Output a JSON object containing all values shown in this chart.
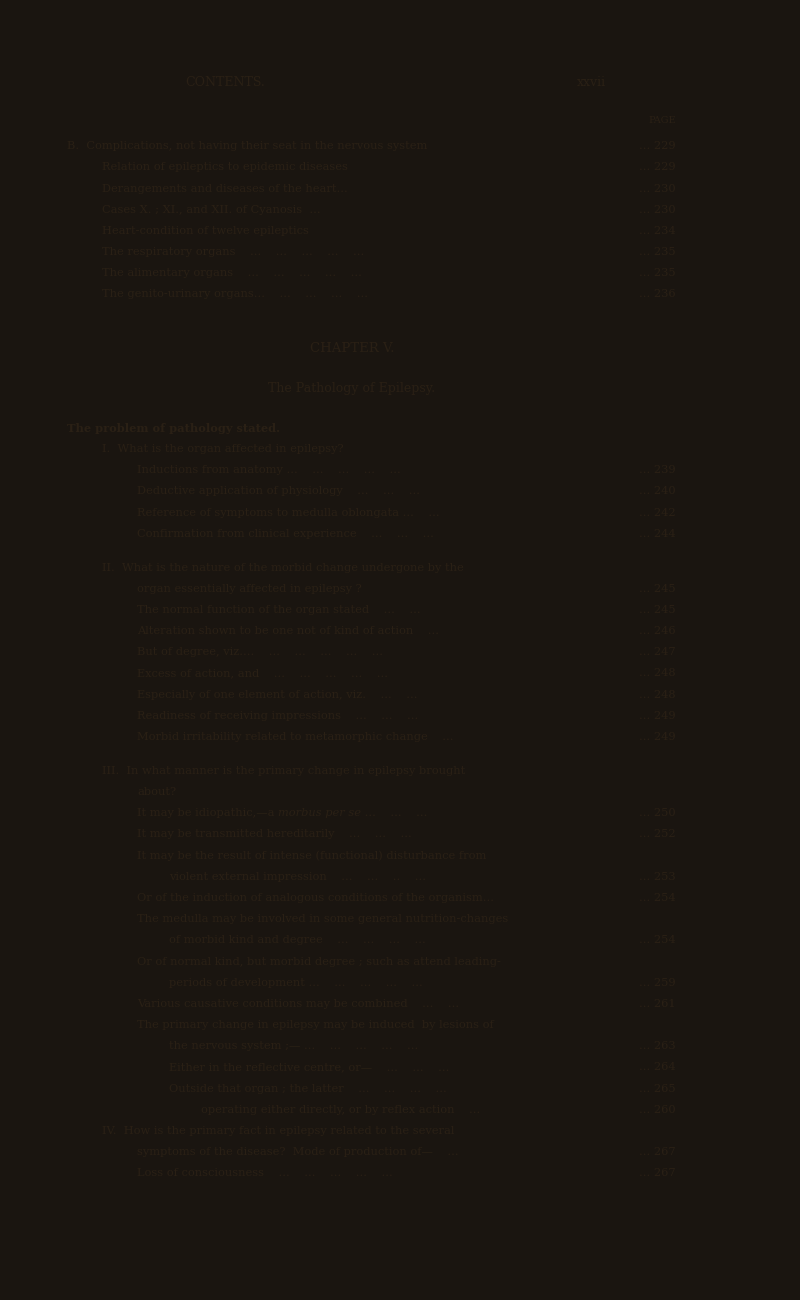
{
  "bg_color": "#1a1510",
  "page_color": "#ede8d0",
  "text_color": "#2a2015",
  "header_left": "CONTENTS.",
  "header_right": "xxvii",
  "page_label": "PAGE",
  "top_bar_height": 0.028,
  "lines": [
    {
      "indent": 0,
      "text": "B.  Complications, not having their seat in the nervous system",
      "page": "229",
      "style": "normal"
    },
    {
      "indent": 1,
      "text": "Relation of epileptics to epidemic diseases",
      "dots_mid": "   ...    ...    ...",
      "page": "229",
      "style": "normal"
    },
    {
      "indent": 1,
      "text": "Derangements and diseases of the heart...",
      "dots_mid": "   ...    ...    ...",
      "page": "230",
      "style": "normal"
    },
    {
      "indent": 1,
      "text": "Cases X. ; XI., and XII. of Cyanosis  ...",
      "dots_mid": "   ...    ...    ...",
      "page": "230",
      "style": "normal"
    },
    {
      "indent": 1,
      "text": "Heart-condition of twelve epileptics",
      "dots_mid": "   ...    ...    ...   ...",
      "page": "234",
      "style": "normal"
    },
    {
      "indent": 1,
      "text": "The respiratory organs    ...    ...    ...    ...    ...",
      "dots_mid": "",
      "page": "235",
      "style": "normal"
    },
    {
      "indent": 1,
      "text": "The alimentary organs    ...    ...    ...    ...    ...",
      "dots_mid": "",
      "page": "235",
      "style": "normal"
    },
    {
      "indent": 1,
      "text": "The genito-urinary organs...    ...    ...    ...    ...",
      "dots_mid": "",
      "page": "236",
      "style": "normal"
    },
    {
      "indent": -1,
      "text": "",
      "page": "",
      "style": "spacer"
    },
    {
      "indent": -1,
      "text": "CHAPTER V.",
      "page": "",
      "style": "chapter_heading"
    },
    {
      "indent": -1,
      "text": "",
      "page": "",
      "style": "spacer_small"
    },
    {
      "indent": -1,
      "text": "The Pathology of Epilepsy.",
      "page": "",
      "style": "section_heading"
    },
    {
      "indent": -1,
      "text": "",
      "page": "",
      "style": "spacer_small"
    },
    {
      "indent": 0,
      "text": "The problem of pathology stated.",
      "page": "",
      "style": "normal_bold"
    },
    {
      "indent": 1,
      "text": "I.  What is the organ affected in epilepsy?",
      "page": "",
      "style": "roman_heading"
    },
    {
      "indent": 2,
      "text": "Inductions from anatomy ...    ...    ...    ...    ...",
      "page": "239",
      "style": "normal"
    },
    {
      "indent": 2,
      "text": "Deductive application of physiology    ...    ...    ...",
      "page": "240",
      "style": "normal"
    },
    {
      "indent": 2,
      "text": "Reference of symptoms to medulla oblongata ...    ...",
      "page": "242",
      "style": "normal"
    },
    {
      "indent": 2,
      "text": "Confirmation from clinical experience    ...    ...    ...",
      "page": "244",
      "style": "normal"
    },
    {
      "indent": -1,
      "text": "",
      "page": "",
      "style": "spacer_small"
    },
    {
      "indent": 1,
      "text": "II.  What is the nature of the morbid change undergone by the",
      "page": "",
      "style": "roman_heading"
    },
    {
      "indent": 2,
      "text": "organ essentially affected in epilepsy ?",
      "dots_mid": "   ...    ...    ...",
      "page": "245",
      "style": "normal"
    },
    {
      "indent": 2,
      "text": "The normal function of the organ stated    ...    ...",
      "dots_mid": "   ...",
      "page": "245",
      "style": "normal"
    },
    {
      "indent": 2,
      "text": "Alteration shown to be one not of kind of action    ...",
      "page": "246",
      "style": "normal"
    },
    {
      "indent": 2,
      "text": "But of degree, viz....    ...    ...    ...    ...    ...",
      "page": "247",
      "style": "normal"
    },
    {
      "indent": 2,
      "text": "Excess of action, and    ...    ...    ...    ...    ...",
      "page": "248",
      "style": "normal"
    },
    {
      "indent": 2,
      "text": "Especially of one element of action, viz.    ...    ...",
      "page": "248",
      "style": "normal"
    },
    {
      "indent": 2,
      "text": "Readiness of receiving impressions    ...    ...    ...",
      "page": "249",
      "style": "normal"
    },
    {
      "indent": 2,
      "text": "Morbid irritability related to metamorphic change    ...",
      "page": "249",
      "style": "normal"
    },
    {
      "indent": -1,
      "text": "",
      "page": "",
      "style": "spacer_small"
    },
    {
      "indent": 1,
      "text": "III.  In what manner is the primary change in epilepsy brought",
      "page": "",
      "style": "roman_heading"
    },
    {
      "indent": 2,
      "text": "about?",
      "page": "",
      "style": "normal"
    },
    {
      "indent": 2,
      "text": "It may be idiopathic,—a morbus per se ...    ...    ...",
      "page": "250",
      "style": "normal_italic",
      "italic_word": "morbus per se"
    },
    {
      "indent": 2,
      "text": "It may be transmitted hereditarily    ...    ...    ...",
      "page": "252",
      "style": "normal"
    },
    {
      "indent": 2,
      "text": "It may be the result of intense (functional) disturbance from",
      "page": "",
      "style": "normal"
    },
    {
      "indent": 3,
      "text": "violent external impression    ...    ...    ..    ...",
      "page": "253",
      "style": "normal"
    },
    {
      "indent": 2,
      "text": "Or of the induction of analogous conditions of the organism...",
      "page": "254",
      "style": "normal"
    },
    {
      "indent": 2,
      "text": "The medulla may be involved in some general nutrition-changes",
      "page": "",
      "style": "normal"
    },
    {
      "indent": 3,
      "text": "of morbid kind and degree    ...    ...    ...    ...",
      "page": "254",
      "style": "normal"
    },
    {
      "indent": 2,
      "text": "Or of normal kind, but morbid degree ; such as attend leading-",
      "page": "",
      "style": "normal"
    },
    {
      "indent": 3,
      "text": "periods of development ...    ...    ...    ...    ...",
      "page": "259",
      "style": "normal"
    },
    {
      "indent": 2,
      "text": "Various causative conditions may be combined    ...    ...",
      "page": "261",
      "style": "normal"
    },
    {
      "indent": 2,
      "text": "The primary change in epilepsy may be induced  by lesions of",
      "page": "",
      "style": "normal"
    },
    {
      "indent": 3,
      "text": "the nervous system ;— ...    ...    ...    ...    ...",
      "page": "263",
      "style": "normal"
    },
    {
      "indent": 3,
      "text": "Either in the reflective centre, or—    ...    ...    ...",
      "page": "264",
      "style": "normal"
    },
    {
      "indent": 3,
      "text": "Outside that organ ; the latter    ...    ...    ...    ...",
      "page": "265",
      "style": "normal"
    },
    {
      "indent": 4,
      "text": "operating either directly, or by reflex action    ...",
      "page": "260",
      "style": "normal"
    },
    {
      "indent": 1,
      "text": "IV.  How is the primary fact in epilepsy related to the several",
      "page": "",
      "style": "roman_heading"
    },
    {
      "indent": 2,
      "text": "symptoms of the disease?  Mode of production of—    ...",
      "page": "267",
      "style": "normal"
    },
    {
      "indent": 2,
      "text": "Loss of consciousness    ...    ...    ...    ...    ...",
      "page": "267",
      "style": "normal"
    }
  ]
}
